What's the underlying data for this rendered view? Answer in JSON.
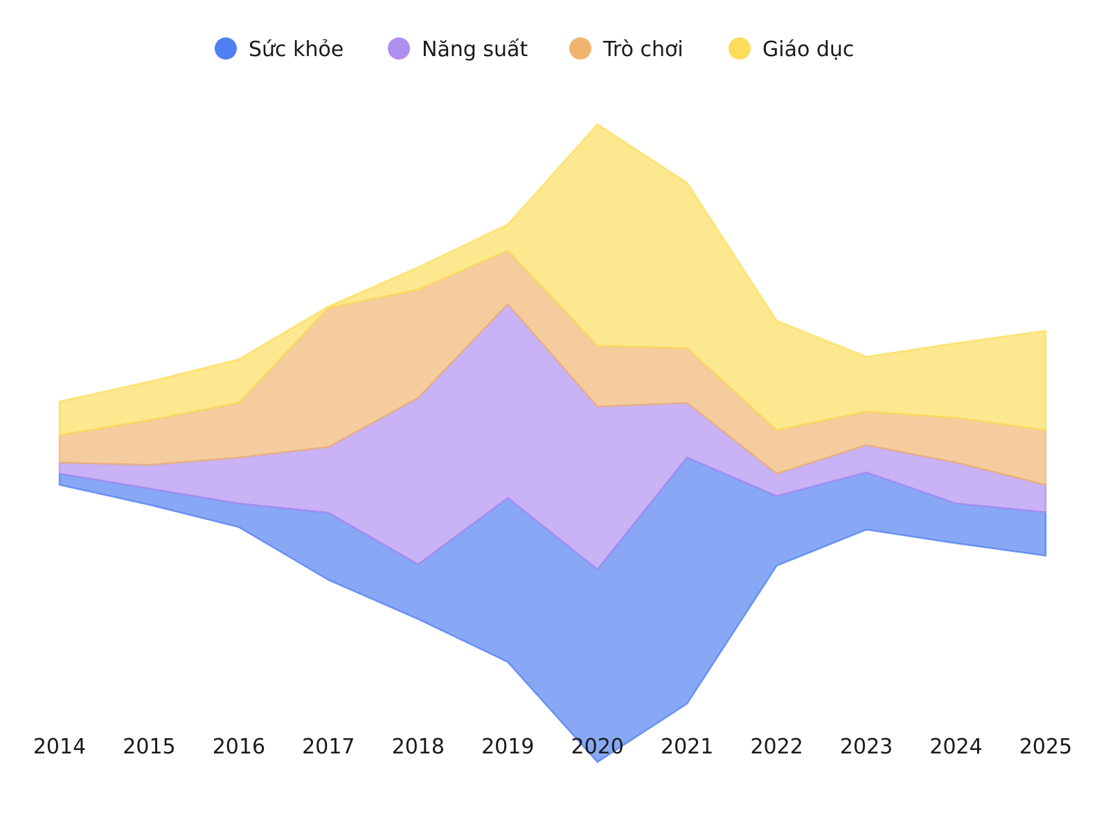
{
  "chart_data": {
    "type": "area",
    "subtype": "streamgraph",
    "title": "",
    "xlabel": "",
    "ylabel": "",
    "x": [
      "2014",
      "2015",
      "2016",
      "2017",
      "2018",
      "2019",
      "2020",
      "2021",
      "2022",
      "2023",
      "2024",
      "2025"
    ],
    "grid": false,
    "legend_position": "top-center",
    "series": [
      {
        "name": "Sức khỏe",
        "color": "#4f7ff0",
        "values": [
          0.9,
          1.3,
          1.9,
          5.4,
          4.4,
          13.2,
          15.5,
          19.8,
          5.6,
          4.6,
          3.2,
          3.5
        ]
      },
      {
        "name": "Năng suất",
        "color": "#b08ef0",
        "values": [
          0.9,
          1.9,
          3.7,
          5.3,
          13.4,
          15.6,
          13.1,
          4.4,
          1.8,
          2.2,
          3.3,
          2.2
        ]
      },
      {
        "name": "Trò chơi",
        "color": "#f0b46f",
        "values": [
          2.2,
          3.6,
          4.4,
          11.2,
          8.7,
          4.3,
          4.9,
          4.4,
          3.5,
          2.7,
          3.6,
          4.4
        ]
      },
      {
        "name": "Giáo dục",
        "color": "#fbdd5a",
        "values": [
          2.7,
          3.1,
          3.5,
          0.1,
          1.8,
          2.1,
          17.8,
          13.3,
          8.8,
          4.4,
          6.0,
          8.0
        ]
      }
    ]
  }
}
